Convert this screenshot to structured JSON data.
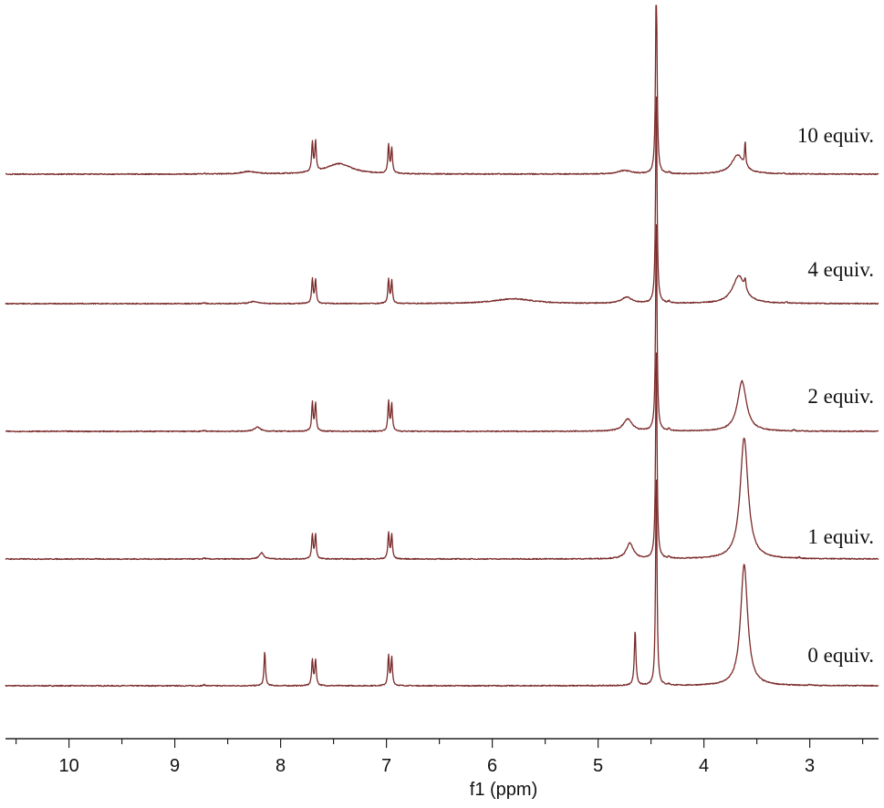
{
  "chart_data": {
    "type": "line",
    "title": "",
    "xlabel": "f1 (ppm)",
    "ylabel": "",
    "xlim": [
      10.6,
      2.35
    ],
    "x_reversed": true,
    "x_ticks": [
      10,
      9,
      8,
      7,
      6,
      5,
      4,
      3
    ],
    "grid": false,
    "colors": {
      "trace": "#7a2a2a",
      "axis": "#222222"
    },
    "series": [
      {
        "name": "0 equiv.",
        "peaks": [
          {
            "ppm": 8.15,
            "height": 1.0,
            "width": 0.008
          },
          {
            "ppm": 7.7,
            "height": 0.75,
            "width": 0.008
          },
          {
            "ppm": 7.67,
            "height": 0.75,
            "width": 0.008
          },
          {
            "ppm": 6.98,
            "height": 0.85,
            "width": 0.008
          },
          {
            "ppm": 6.95,
            "height": 0.8,
            "width": 0.008
          },
          {
            "ppm": 4.65,
            "height": 1.6,
            "width": 0.009
          },
          {
            "ppm": 4.45,
            "height": 6.0,
            "width": 0.008
          },
          {
            "ppm": 3.62,
            "height": 3.5,
            "width": 0.04
          },
          {
            "ppm": 8.72,
            "height": 0.03,
            "width": 0.01
          },
          {
            "ppm": 4.33,
            "height": 0.04,
            "width": 0.01
          },
          {
            "ppm": 3.0,
            "height": 0.03,
            "width": 0.01
          }
        ]
      },
      {
        "name": "1 equiv.",
        "peaks": [
          {
            "ppm": 8.18,
            "height": 0.18,
            "width": 0.025
          },
          {
            "ppm": 7.7,
            "height": 0.7,
            "width": 0.008
          },
          {
            "ppm": 7.67,
            "height": 0.7,
            "width": 0.008
          },
          {
            "ppm": 6.98,
            "height": 0.75,
            "width": 0.008
          },
          {
            "ppm": 6.95,
            "height": 0.7,
            "width": 0.008
          },
          {
            "ppm": 4.7,
            "height": 0.45,
            "width": 0.04
          },
          {
            "ppm": 4.45,
            "height": 6.0,
            "width": 0.008
          },
          {
            "ppm": 3.62,
            "height": 3.5,
            "width": 0.045
          },
          {
            "ppm": 8.72,
            "height": 0.03,
            "width": 0.01
          },
          {
            "ppm": 4.33,
            "height": 0.04,
            "width": 0.01
          },
          {
            "ppm": 3.1,
            "height": 0.03,
            "width": 0.01
          }
        ]
      },
      {
        "name": "2 equiv.",
        "peaks": [
          {
            "ppm": 8.22,
            "height": 0.12,
            "width": 0.035
          },
          {
            "ppm": 7.7,
            "height": 0.82,
            "width": 0.008
          },
          {
            "ppm": 7.67,
            "height": 0.82,
            "width": 0.008
          },
          {
            "ppm": 6.98,
            "height": 0.85,
            "width": 0.008
          },
          {
            "ppm": 6.95,
            "height": 0.8,
            "width": 0.008
          },
          {
            "ppm": 4.72,
            "height": 0.35,
            "width": 0.05
          },
          {
            "ppm": 4.45,
            "height": 6.0,
            "width": 0.008
          },
          {
            "ppm": 3.64,
            "height": 1.45,
            "width": 0.05
          },
          {
            "ppm": 8.72,
            "height": 0.03,
            "width": 0.01
          },
          {
            "ppm": 4.33,
            "height": 0.05,
            "width": 0.01
          },
          {
            "ppm": 3.15,
            "height": 0.03,
            "width": 0.01
          }
        ]
      },
      {
        "name": "4 equiv.",
        "peaks": [
          {
            "ppm": 8.25,
            "height": 0.06,
            "width": 0.05
          },
          {
            "ppm": 7.7,
            "height": 0.7,
            "width": 0.008
          },
          {
            "ppm": 7.67,
            "height": 0.7,
            "width": 0.008
          },
          {
            "ppm": 6.98,
            "height": 0.68,
            "width": 0.008
          },
          {
            "ppm": 6.95,
            "height": 0.65,
            "width": 0.008
          },
          {
            "ppm": 5.8,
            "height": 0.14,
            "width": 0.22
          },
          {
            "ppm": 4.73,
            "height": 0.18,
            "width": 0.06
          },
          {
            "ppm": 4.45,
            "height": 6.0,
            "width": 0.008
          },
          {
            "ppm": 3.67,
            "height": 0.8,
            "width": 0.07
          },
          {
            "ppm": 3.61,
            "height": 0.3,
            "width": 0.008
          },
          {
            "ppm": 8.72,
            "height": 0.03,
            "width": 0.01
          },
          {
            "ppm": 4.33,
            "height": 0.05,
            "width": 0.01
          },
          {
            "ppm": 3.22,
            "height": 0.03,
            "width": 0.01
          }
        ]
      },
      {
        "name": "10 equiv.",
        "peaks": [
          {
            "ppm": 8.3,
            "height": 0.07,
            "width": 0.08
          },
          {
            "ppm": 7.7,
            "height": 0.85,
            "width": 0.008
          },
          {
            "ppm": 7.67,
            "height": 0.85,
            "width": 0.008
          },
          {
            "ppm": 7.45,
            "height": 0.3,
            "width": 0.15
          },
          {
            "ppm": 6.98,
            "height": 0.82,
            "width": 0.008
          },
          {
            "ppm": 6.95,
            "height": 0.72,
            "width": 0.008
          },
          {
            "ppm": 4.75,
            "height": 0.1,
            "width": 0.08
          },
          {
            "ppm": 4.45,
            "height": 6.0,
            "width": 0.008
          },
          {
            "ppm": 3.68,
            "height": 0.55,
            "width": 0.07
          },
          {
            "ppm": 3.61,
            "height": 0.7,
            "width": 0.006
          },
          {
            "ppm": 8.72,
            "height": 0.03,
            "width": 0.01
          },
          {
            "ppm": 4.33,
            "height": 0.05,
            "width": 0.01
          },
          {
            "ppm": 3.25,
            "height": 0.03,
            "width": 0.01
          }
        ]
      }
    ]
  }
}
